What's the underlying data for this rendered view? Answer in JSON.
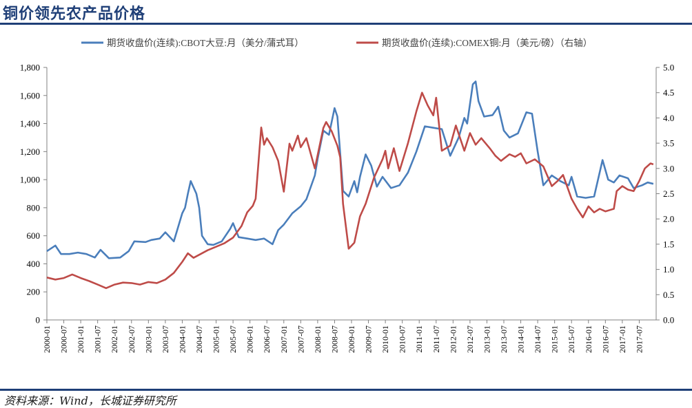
{
  "header": {
    "title": "铜价领先农产品价格"
  },
  "footer": {
    "source": "资料来源：Wind，长城证券研究所"
  },
  "colors": {
    "blue": "#4a7ebb",
    "red": "#be4b48",
    "brand": "#1f3f77"
  },
  "chart_data": {
    "type": "line",
    "title": "",
    "legend_position": "top",
    "grid": false,
    "x_tick_labels": [
      "2000-01",
      "2000-07",
      "2001-01",
      "2001-07",
      "2002-01",
      "2002-07",
      "2003-01",
      "2003-07",
      "2004-01",
      "2004-07",
      "2005-01",
      "2005-07",
      "2006-01",
      "2006-07",
      "2007-01",
      "2007-07",
      "2008-01",
      "2008-07",
      "2009-01",
      "2009-07",
      "2010-01",
      "2010-07",
      "2011-01",
      "2011-07",
      "2012-01",
      "2012-07",
      "2013-01",
      "2013-07",
      "2014-01",
      "2014-07",
      "2015-01",
      "2015-07",
      "2016-01",
      "2016-07",
      "2017-01",
      "2017-07"
    ],
    "y_left": {
      "min": 0,
      "max": 1800,
      "ticks": [
        "0",
        "200",
        "400",
        "600",
        "800",
        "1,000",
        "1,200",
        "1,400",
        "1,600",
        "1,800"
      ]
    },
    "y_right": {
      "min": 0,
      "max": 5,
      "ticks": [
        "0.0",
        "0.5",
        "1.0",
        "1.5",
        "2.0",
        "2.5",
        "3.0",
        "3.5",
        "4.0",
        "4.5",
        "5.0"
      ]
    },
    "series": [
      {
        "name": "期货收盘价(连续):CBOT大豆:月（美分/蒲式耳）",
        "axis": "left",
        "color": "#4a7ebb",
        "points": [
          [
            "2000-01",
            490
          ],
          [
            "2000-04",
            530
          ],
          [
            "2000-06",
            470
          ],
          [
            "2000-09",
            470
          ],
          [
            "2000-12",
            480
          ],
          [
            "2001-03",
            470
          ],
          [
            "2001-06",
            445
          ],
          [
            "2001-08",
            500
          ],
          [
            "2001-11",
            440
          ],
          [
            "2002-03",
            445
          ],
          [
            "2002-06",
            490
          ],
          [
            "2002-08",
            560
          ],
          [
            "2002-12",
            555
          ],
          [
            "2003-02",
            570
          ],
          [
            "2003-05",
            580
          ],
          [
            "2003-07",
            625
          ],
          [
            "2003-10",
            560
          ],
          [
            "2004-01",
            760
          ],
          [
            "2004-02",
            800
          ],
          [
            "2004-03",
            900
          ],
          [
            "2004-04",
            990
          ],
          [
            "2004-06",
            900
          ],
          [
            "2004-07",
            800
          ],
          [
            "2004-08",
            600
          ],
          [
            "2004-10",
            540
          ],
          [
            "2004-12",
            535
          ],
          [
            "2005-03",
            560
          ],
          [
            "2005-06",
            650
          ],
          [
            "2005-07",
            690
          ],
          [
            "2005-09",
            590
          ],
          [
            "2005-12",
            580
          ],
          [
            "2006-03",
            570
          ],
          [
            "2006-06",
            580
          ],
          [
            "2006-09",
            540
          ],
          [
            "2006-11",
            640
          ],
          [
            "2007-01",
            680
          ],
          [
            "2007-04",
            760
          ],
          [
            "2007-07",
            810
          ],
          [
            "2007-09",
            860
          ],
          [
            "2007-12",
            1030
          ],
          [
            "2008-01",
            1150
          ],
          [
            "2008-03",
            1350
          ],
          [
            "2008-05",
            1320
          ],
          [
            "2008-07",
            1510
          ],
          [
            "2008-08",
            1450
          ],
          [
            "2008-10",
            920
          ],
          [
            "2008-12",
            880
          ],
          [
            "2009-02",
            990
          ],
          [
            "2009-03",
            910
          ],
          [
            "2009-04",
            1020
          ],
          [
            "2009-06",
            1180
          ],
          [
            "2009-08",
            1100
          ],
          [
            "2009-10",
            950
          ],
          [
            "2009-12",
            1020
          ],
          [
            "2010-03",
            940
          ],
          [
            "2010-06",
            960
          ],
          [
            "2010-09",
            1050
          ],
          [
            "2010-12",
            1200
          ],
          [
            "2011-03",
            1380
          ],
          [
            "2011-06",
            1370
          ],
          [
            "2011-09",
            1360
          ],
          [
            "2011-12",
            1170
          ],
          [
            "2012-03",
            1300
          ],
          [
            "2012-05",
            1440
          ],
          [
            "2012-06",
            1400
          ],
          [
            "2012-08",
            1680
          ],
          [
            "2012-09",
            1700
          ],
          [
            "2012-10",
            1560
          ],
          [
            "2012-12",
            1450
          ],
          [
            "2013-03",
            1460
          ],
          [
            "2013-05",
            1520
          ],
          [
            "2013-07",
            1350
          ],
          [
            "2013-09",
            1300
          ],
          [
            "2013-12",
            1330
          ],
          [
            "2014-03",
            1480
          ],
          [
            "2014-05",
            1470
          ],
          [
            "2014-07",
            1200
          ],
          [
            "2014-09",
            960
          ],
          [
            "2014-12",
            1030
          ],
          [
            "2015-03",
            990
          ],
          [
            "2015-06",
            960
          ],
          [
            "2015-07",
            1020
          ],
          [
            "2015-09",
            880
          ],
          [
            "2015-12",
            870
          ],
          [
            "2016-03",
            880
          ],
          [
            "2016-06",
            1140
          ],
          [
            "2016-08",
            1000
          ],
          [
            "2016-10",
            980
          ],
          [
            "2016-12",
            1030
          ],
          [
            "2017-03",
            1010
          ],
          [
            "2017-05",
            940
          ],
          [
            "2017-08",
            960
          ],
          [
            "2017-10",
            980
          ],
          [
            "2017-12",
            970
          ]
        ]
      },
      {
        "name": "期货收盘价(连续):COMEX铜:月（美元/磅）（右轴）",
        "axis": "right",
        "color": "#be4b48",
        "points": [
          [
            "2000-01",
            0.84
          ],
          [
            "2000-04",
            0.8
          ],
          [
            "2000-07",
            0.83
          ],
          [
            "2000-10",
            0.9
          ],
          [
            "2001-01",
            0.83
          ],
          [
            "2001-04",
            0.77
          ],
          [
            "2001-07",
            0.7
          ],
          [
            "2001-10",
            0.63
          ],
          [
            "2002-01",
            0.7
          ],
          [
            "2002-04",
            0.74
          ],
          [
            "2002-07",
            0.73
          ],
          [
            "2002-10",
            0.7
          ],
          [
            "2003-01",
            0.75
          ],
          [
            "2003-04",
            0.73
          ],
          [
            "2003-07",
            0.8
          ],
          [
            "2003-10",
            0.93
          ],
          [
            "2004-01",
            1.15
          ],
          [
            "2004-03",
            1.32
          ],
          [
            "2004-05",
            1.23
          ],
          [
            "2004-07",
            1.29
          ],
          [
            "2004-10",
            1.38
          ],
          [
            "2005-01",
            1.45
          ],
          [
            "2005-04",
            1.52
          ],
          [
            "2005-07",
            1.63
          ],
          [
            "2005-10",
            1.86
          ],
          [
            "2005-12",
            2.13
          ],
          [
            "2006-02",
            2.26
          ],
          [
            "2006-03",
            2.4
          ],
          [
            "2006-05",
            3.81
          ],
          [
            "2006-06",
            3.47
          ],
          [
            "2006-07",
            3.6
          ],
          [
            "2006-09",
            3.42
          ],
          [
            "2006-11",
            3.15
          ],
          [
            "2007-01",
            2.54
          ],
          [
            "2007-03",
            3.49
          ],
          [
            "2007-04",
            3.35
          ],
          [
            "2007-06",
            3.65
          ],
          [
            "2007-07",
            3.42
          ],
          [
            "2007-09",
            3.6
          ],
          [
            "2007-12",
            3.0
          ],
          [
            "2008-03",
            3.8
          ],
          [
            "2008-04",
            3.92
          ],
          [
            "2008-06",
            3.73
          ],
          [
            "2008-08",
            3.45
          ],
          [
            "2008-09",
            3.22
          ],
          [
            "2008-10",
            2.3
          ],
          [
            "2008-12",
            1.41
          ],
          [
            "2009-02",
            1.53
          ],
          [
            "2009-04",
            2.05
          ],
          [
            "2009-06",
            2.3
          ],
          [
            "2009-09",
            2.82
          ],
          [
            "2009-12",
            3.18
          ],
          [
            "2010-01",
            3.35
          ],
          [
            "2010-02",
            3.0
          ],
          [
            "2010-04",
            3.4
          ],
          [
            "2010-06",
            2.95
          ],
          [
            "2010-09",
            3.5
          ],
          [
            "2010-12",
            4.13
          ],
          [
            "2011-02",
            4.5
          ],
          [
            "2011-04",
            4.25
          ],
          [
            "2011-06",
            4.05
          ],
          [
            "2011-07",
            4.4
          ],
          [
            "2011-09",
            3.35
          ],
          [
            "2011-12",
            3.45
          ],
          [
            "2012-02",
            3.85
          ],
          [
            "2012-05",
            3.35
          ],
          [
            "2012-07",
            3.7
          ],
          [
            "2012-09",
            3.47
          ],
          [
            "2012-11",
            3.6
          ],
          [
            "2013-02",
            3.4
          ],
          [
            "2013-04",
            3.25
          ],
          [
            "2013-06",
            3.15
          ],
          [
            "2013-09",
            3.28
          ],
          [
            "2013-11",
            3.23
          ],
          [
            "2014-01",
            3.3
          ],
          [
            "2014-03",
            3.1
          ],
          [
            "2014-06",
            3.18
          ],
          [
            "2014-09",
            3.04
          ],
          [
            "2014-12",
            2.65
          ],
          [
            "2015-02",
            2.75
          ],
          [
            "2015-04",
            2.87
          ],
          [
            "2015-07",
            2.4
          ],
          [
            "2015-09",
            2.2
          ],
          [
            "2015-11",
            2.03
          ],
          [
            "2016-01",
            2.25
          ],
          [
            "2016-03",
            2.13
          ],
          [
            "2016-05",
            2.2
          ],
          [
            "2016-07",
            2.15
          ],
          [
            "2016-10",
            2.2
          ],
          [
            "2016-11",
            2.55
          ],
          [
            "2017-01",
            2.65
          ],
          [
            "2017-03",
            2.58
          ],
          [
            "2017-05",
            2.55
          ],
          [
            "2017-07",
            2.75
          ],
          [
            "2017-09",
            3.0
          ],
          [
            "2017-11",
            3.1
          ],
          [
            "2017-12",
            3.08
          ]
        ]
      }
    ]
  }
}
